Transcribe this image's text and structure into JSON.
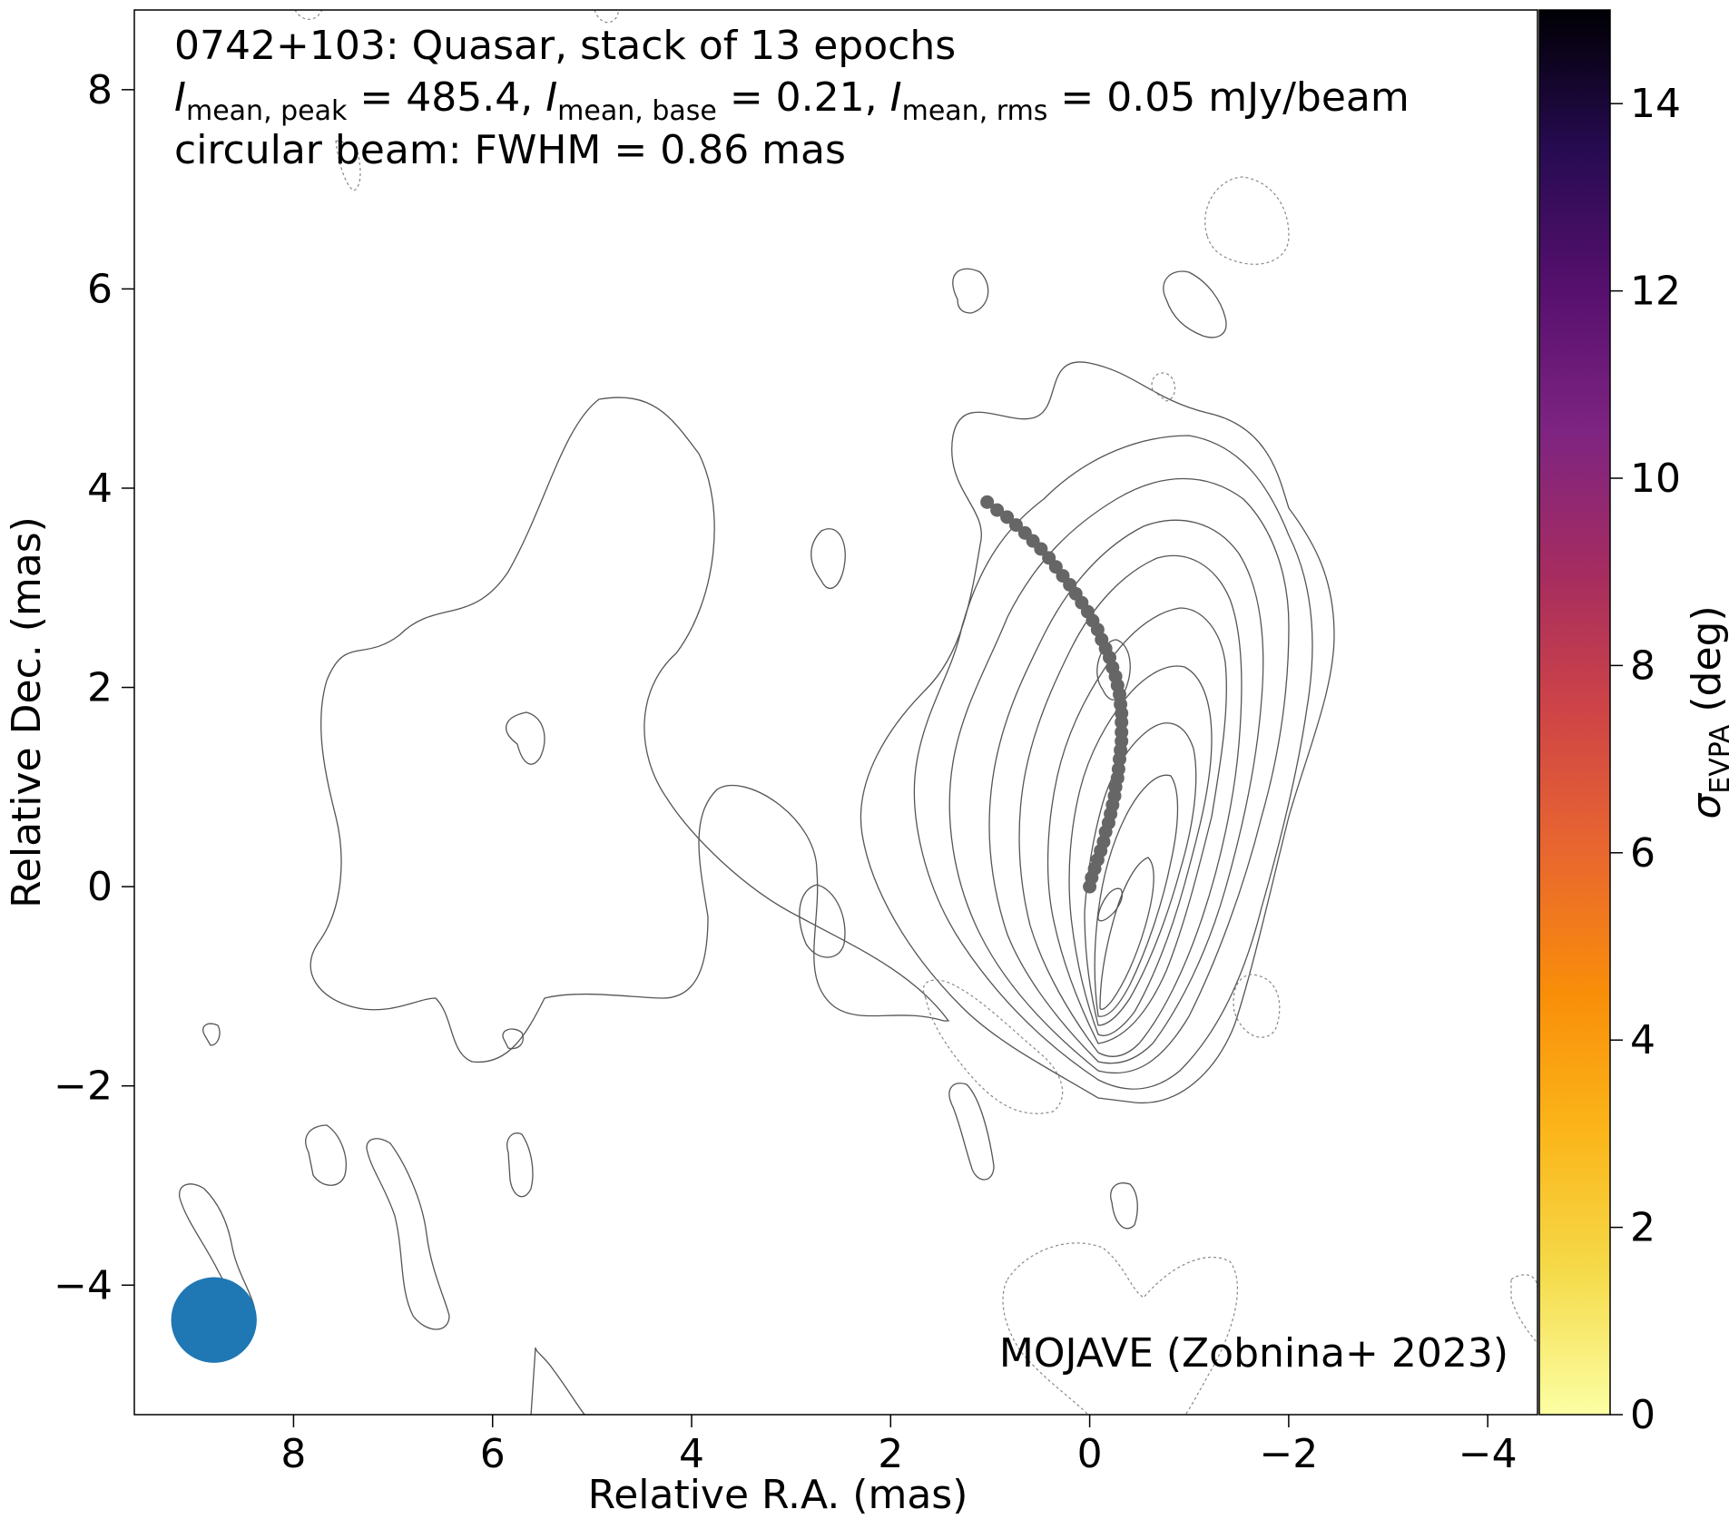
{
  "chart_data": {
    "type": "scatter",
    "title_lines": {
      "line1": "0742+103: Quasar, stack of 13 epochs",
      "line2": {
        "i_symbol": "I",
        "peak_sub": "mean, peak",
        "peak_value": " = 485.4, ",
        "base_sub": "mean, base",
        "base_value": " = 0.21, ",
        "rms_sub": "mean, rms",
        "rms_value": " = 0.05 mJy/beam"
      },
      "line3": "circular beam: FWHM = 0.86 mas"
    },
    "annotation": "MOJAVE (Zobnina+ 2023)",
    "xlabel": "Relative R.A. (mas)",
    "ylabel": "Relative Dec. (mas)",
    "xlim": [
      9.6,
      -4.5
    ],
    "ylim": [
      -5.3,
      8.8
    ],
    "xticks": [
      8,
      6,
      4,
      2,
      0,
      -2,
      -4
    ],
    "yticks": [
      8,
      6,
      4,
      2,
      0,
      -2,
      -4
    ],
    "xtick_labels": [
      "8",
      "6",
      "4",
      "2",
      "0",
      "−2",
      "−4"
    ],
    "ytick_labels": [
      "8",
      "6",
      "4",
      "2",
      "0",
      "−2",
      "−4"
    ],
    "colorbar": {
      "label_symbol": "σ",
      "label_sub": "EVPA",
      "label_unit": " (deg)",
      "range": [
        0,
        15
      ],
      "ticks": [
        0,
        2,
        4,
        6,
        8,
        10,
        12,
        14
      ],
      "tick_labels": [
        "0",
        "2",
        "4",
        "6",
        "8",
        "10",
        "12",
        "14"
      ],
      "colormap": "inferno_r"
    },
    "beam": {
      "x": 8.8,
      "y": -4.35,
      "fwhm": 0.86,
      "color": "#1f77b4"
    },
    "ridgeline": {
      "color": "#666666",
      "x": [
        0.0,
        -0.02,
        -0.05,
        -0.08,
        -0.11,
        -0.14,
        -0.16,
        -0.19,
        -0.21,
        -0.23,
        -0.25,
        -0.26,
        -0.28,
        -0.29,
        -0.3,
        -0.31,
        -0.32,
        -0.32,
        -0.32,
        -0.32,
        -0.31,
        -0.3,
        -0.28,
        -0.26,
        -0.23,
        -0.2,
        -0.16,
        -0.12,
        -0.08,
        -0.03,
        0.02,
        0.08,
        0.14,
        0.2,
        0.27,
        0.34,
        0.41,
        0.49,
        0.57,
        0.65,
        0.74,
        0.83,
        0.93,
        1.03
      ],
      "y": [
        0.0,
        0.09,
        0.18,
        0.27,
        0.36,
        0.45,
        0.55,
        0.64,
        0.73,
        0.82,
        0.91,
        1.0,
        1.09,
        1.18,
        1.28,
        1.37,
        1.46,
        1.55,
        1.65,
        1.74,
        1.83,
        1.93,
        2.02,
        2.11,
        2.2,
        2.3,
        2.39,
        2.48,
        2.58,
        2.67,
        2.76,
        2.85,
        2.94,
        3.03,
        3.12,
        3.21,
        3.3,
        3.39,
        3.47,
        3.55,
        3.63,
        3.71,
        3.78,
        3.86
      ]
    }
  }
}
